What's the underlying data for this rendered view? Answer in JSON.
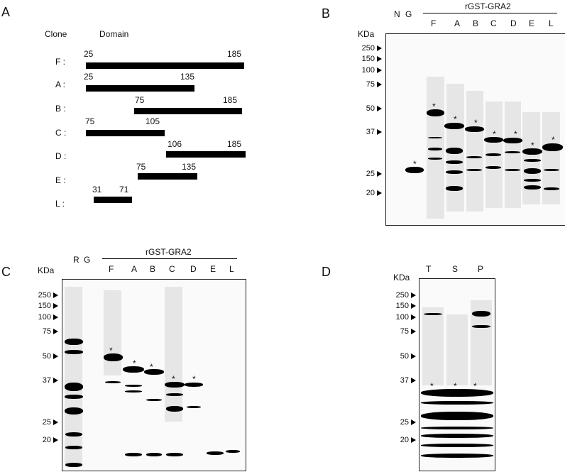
{
  "panels": {
    "a": {
      "letter": "A",
      "headers": {
        "clone": "Clone",
        "domain": "Domain"
      },
      "clones": [
        {
          "name": "F :",
          "start": "25",
          "end": "185"
        },
        {
          "name": "A :",
          "start": "25",
          "end": "135"
        },
        {
          "name": "B :",
          "start": "75",
          "end": "185"
        },
        {
          "name": "C :",
          "start": "75",
          "end": "105"
        },
        {
          "name": "D :",
          "start": "106",
          "end": "185"
        },
        {
          "name": "E :",
          "start": "75",
          "end": "135"
        },
        {
          "name": "L :",
          "start": "31",
          "end": "71"
        }
      ]
    },
    "b": {
      "letter": "B",
      "group": "rGST-GRA2",
      "lane_labels": [
        "N",
        "G",
        "F",
        "A",
        "B",
        "C",
        "D",
        "E",
        "L"
      ],
      "unit": "KDa",
      "markers": [
        "250",
        "150",
        "100",
        "75",
        "50",
        "37",
        "25",
        "20"
      ]
    },
    "c": {
      "letter": "C",
      "group": "rGST-GRA2",
      "lane_labels": [
        "R",
        "G",
        "F",
        "A",
        "B",
        "C",
        "D",
        "E",
        "L"
      ],
      "unit": "KDa",
      "markers": [
        "250",
        "150",
        "100",
        "75",
        "50",
        "37",
        "25",
        "20"
      ]
    },
    "d": {
      "letter": "D",
      "lane_labels": [
        "T",
        "S",
        "P"
      ],
      "unit": "KDa",
      "markers": [
        "250",
        "150",
        "100",
        "75",
        "50",
        "37",
        "25",
        "20"
      ]
    },
    "star": "*"
  }
}
